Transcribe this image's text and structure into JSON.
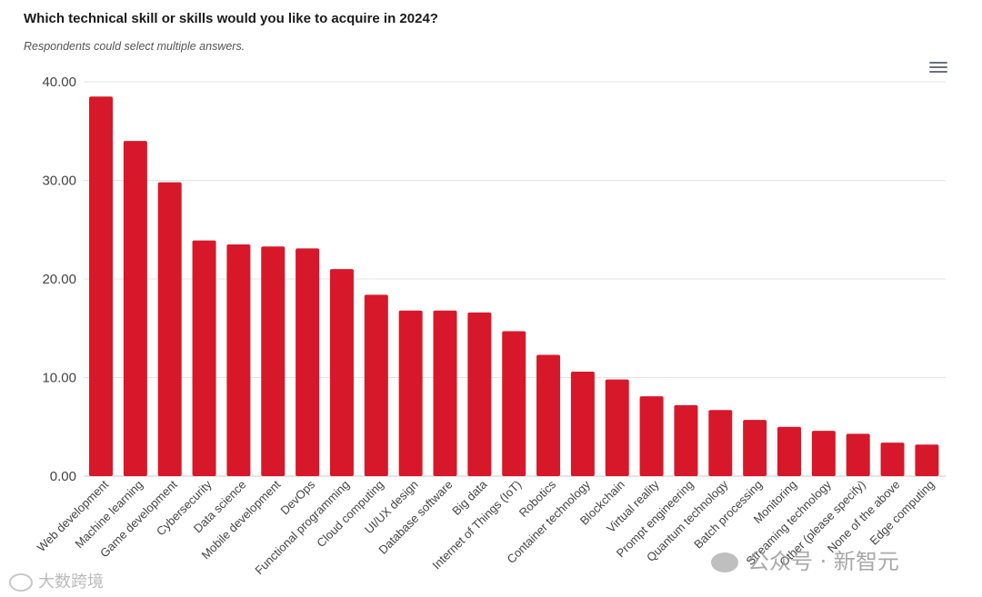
{
  "chart_data": {
    "type": "bar",
    "title": "Which technical skill or skills would you like to acquire in 2024?",
    "subtitle": "Respondents could select multiple answers.",
    "xlabel": "",
    "ylabel": "",
    "ylim": [
      0,
      40
    ],
    "yticks": [
      "0.00",
      "10.00",
      "20.00",
      "30.00",
      "40.00"
    ],
    "grid": true,
    "bar_color": "#d7182a",
    "categories": [
      "Web development",
      "Machine learning",
      "Game development",
      "Cybersecurity",
      "Data science",
      "Mobile development",
      "DevOps",
      "Functional programming",
      "Cloud computing",
      "UI/UX design",
      "Database software",
      "Big data",
      "Internet of Things (IoT)",
      "Robotics",
      "Container technology",
      "Blockchain",
      "Virtual reality",
      "Prompt engineering",
      "Quantum technology",
      "Batch processing",
      "Monitoring",
      "Streaming technology",
      "Other (please specify)",
      "None of the above",
      "Edge computing"
    ],
    "values": [
      38.5,
      34.0,
      29.8,
      23.9,
      23.5,
      23.3,
      23.1,
      21.0,
      18.4,
      16.8,
      16.8,
      16.6,
      14.7,
      12.3,
      10.6,
      9.8,
      8.1,
      7.2,
      6.7,
      5.7,
      5.0,
      4.6,
      4.3,
      3.4,
      3.2
    ]
  },
  "menu": {
    "icon": "hamburger-menu-icon"
  },
  "watermark": {
    "left_text": "大数跨境",
    "right_text": "公众号 · 新智元"
  }
}
